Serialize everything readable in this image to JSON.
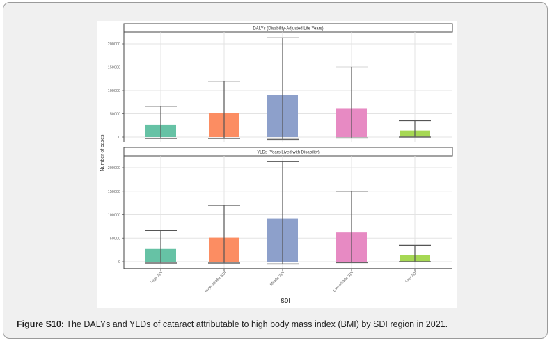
{
  "caption": {
    "label": "Figure S10:",
    "text": " The DALYs and YLDs of cataract attributable to high body mass index (BMI) by SDI region in 2021."
  },
  "colors": {
    "High SDI": "#66c2a5",
    "High-middle SDI": "#fc8d62",
    "Middle SDI": "#8da0cb",
    "Low-middle SDI": "#e78ac3",
    "Low SDI": "#a6d854"
  },
  "chart_data": [
    {
      "type": "bar",
      "title": "DALYs (Disability-Adjusted Life Years)",
      "xlabel": "SDI",
      "ylabel": "Number of cases",
      "categories": [
        "High SDI",
        "High-middle SDI",
        "Middle SDI",
        "Low-middle SDI",
        "Low SDI"
      ],
      "values": [
        27000,
        51000,
        91000,
        62000,
        14000
      ],
      "error_upper": [
        66000,
        120000,
        213000,
        150000,
        35000
      ],
      "error_lower": [
        -3000,
        -3000,
        -5000,
        -2000,
        0
      ],
      "yticks": [
        0,
        50000,
        100000,
        150000,
        200000
      ],
      "ytick_labels": [
        "0",
        "50000",
        "100000",
        "150000",
        "200000"
      ],
      "ylim": [
        -8000,
        225000
      ],
      "grid": true
    },
    {
      "type": "bar",
      "title": "YLDs (Years Lived with Disability)",
      "xlabel": "SDI",
      "ylabel": "Number of cases",
      "categories": [
        "High SDI",
        "High-middle SDI",
        "Middle SDI",
        "Low-middle SDI",
        "Low SDI"
      ],
      "values": [
        27000,
        51000,
        91000,
        62000,
        14000
      ],
      "error_upper": [
        66000,
        120000,
        213000,
        150000,
        35000
      ],
      "error_lower": [
        -3000,
        -3000,
        -5000,
        -2000,
        0
      ],
      "yticks": [
        0,
        50000,
        100000,
        150000,
        200000
      ],
      "ytick_labels": [
        "0",
        "50000",
        "100000",
        "150000",
        "200000"
      ],
      "ylim": [
        -8000,
        225000
      ],
      "grid": true
    }
  ]
}
